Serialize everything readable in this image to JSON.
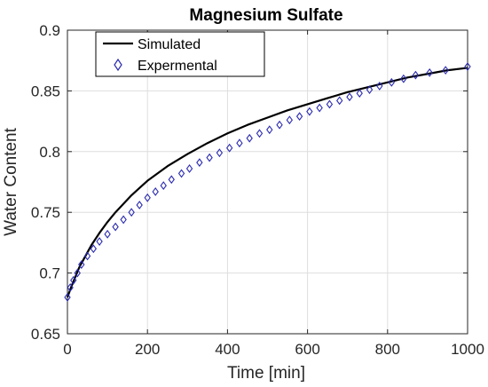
{
  "chart_data": {
    "type": "line",
    "title": "Magnesium Sulfate",
    "xlabel": "Time [min]",
    "ylabel": "Water Content",
    "xlim": [
      0,
      1000
    ],
    "ylim": [
      0.65,
      0.9
    ],
    "xticks": [
      0,
      200,
      400,
      600,
      800,
      1000
    ],
    "xtick_labels": [
      "0",
      "200",
      "400",
      "600",
      "800",
      "1000"
    ],
    "yticks": [
      0.65,
      0.7,
      0.75,
      0.8,
      0.85,
      0.9
    ],
    "ytick_labels": [
      "0.65",
      "0.7",
      "0.75",
      "0.8",
      "0.85",
      "0.9"
    ],
    "grid": true,
    "legend_position": "top-left",
    "series": [
      {
        "name": "Simulated",
        "style": "line",
        "color": "#000000",
        "x": [
          0,
          10,
          20,
          30,
          40,
          50,
          60,
          80,
          100,
          120,
          140,
          160,
          180,
          200,
          250,
          300,
          350,
          400,
          450,
          500,
          550,
          600,
          650,
          700,
          750,
          800,
          850,
          900,
          950,
          1000
        ],
        "y": [
          0.68,
          0.689,
          0.697,
          0.705,
          0.711,
          0.717,
          0.723,
          0.733,
          0.742,
          0.75,
          0.757,
          0.764,
          0.77,
          0.776,
          0.788,
          0.798,
          0.807,
          0.815,
          0.822,
          0.828,
          0.834,
          0.839,
          0.844,
          0.849,
          0.853,
          0.857,
          0.861,
          0.864,
          0.867,
          0.869
        ]
      },
      {
        "name": "Expermental",
        "style": "marker",
        "marker": "diamond",
        "color": "#2b2bb0",
        "x": [
          0,
          7,
          15,
          25,
          35,
          50,
          65,
          80,
          100,
          120,
          140,
          160,
          180,
          200,
          220,
          240,
          260,
          285,
          305,
          330,
          355,
          380,
          405,
          430,
          455,
          480,
          505,
          530,
          555,
          580,
          605,
          630,
          655,
          680,
          705,
          730,
          755,
          780,
          810,
          840,
          870,
          905,
          945,
          1000
        ],
        "y": [
          0.68,
          0.688,
          0.694,
          0.7,
          0.707,
          0.714,
          0.72,
          0.726,
          0.732,
          0.738,
          0.744,
          0.75,
          0.756,
          0.762,
          0.767,
          0.772,
          0.777,
          0.782,
          0.786,
          0.791,
          0.795,
          0.799,
          0.803,
          0.807,
          0.811,
          0.815,
          0.818,
          0.822,
          0.826,
          0.829,
          0.833,
          0.836,
          0.839,
          0.842,
          0.845,
          0.848,
          0.851,
          0.854,
          0.857,
          0.86,
          0.863,
          0.865,
          0.867,
          0.87
        ]
      }
    ]
  }
}
